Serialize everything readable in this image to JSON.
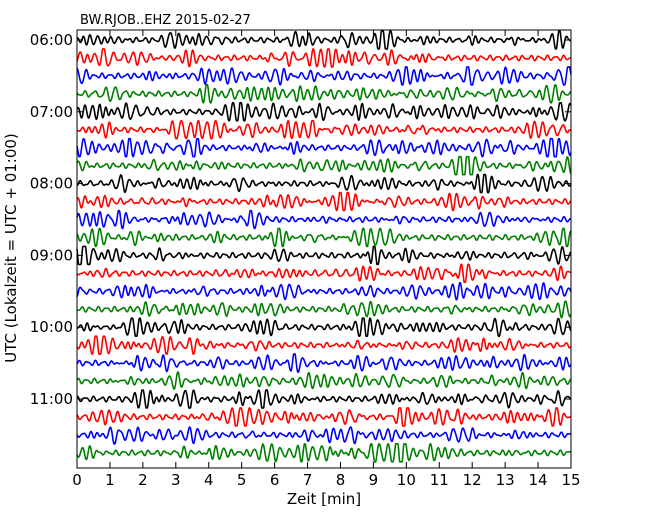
{
  "chart_data": {
    "type": "line",
    "title": "BW.RJOB..EHZ 2015-02-27",
    "xlabel": "Zeit  [min]",
    "ylabel": "UTC (Lokalzeit = UTC + 01:00)",
    "xlim": [
      0,
      15
    ],
    "x_ticks": [
      "0",
      "1",
      "2",
      "3",
      "4",
      "5",
      "6",
      "7",
      "8",
      "9",
      "10",
      "11",
      "12",
      "13",
      "14",
      "15"
    ],
    "y_ticks": [
      "06:00",
      "07:00",
      "08:00",
      "09:00",
      "10:00",
      "11:00"
    ],
    "trace_interval_min": 15,
    "trace_start": "06:00",
    "trace_end": "11:45",
    "trace_count": 24,
    "colors": [
      "#000000",
      "#ff0000",
      "#0000ff",
      "#008000"
    ],
    "grid": false,
    "legend": "none"
  }
}
